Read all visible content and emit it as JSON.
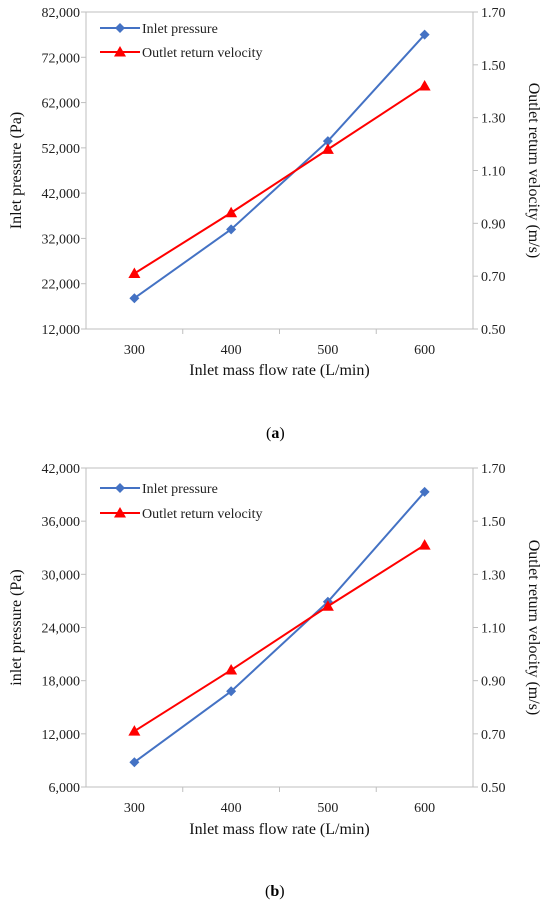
{
  "colors": {
    "pressure": "#4472C4",
    "velocity": "#FF0000"
  },
  "panels": [
    {
      "caption_open": "(",
      "caption_letter": "a",
      "caption_close": ")",
      "chart_data": {
        "type": "line",
        "xlabel": "Inlet mass flow rate (L/min)",
        "ylabel": "Inlet pressure (Pa)",
        "y2label": "Outlet return velocity (m/s)",
        "categories": [
          "300",
          "400",
          "500",
          "600"
        ],
        "y_ticks": [
          "12,000",
          "22,000",
          "32,000",
          "42,000",
          "52,000",
          "62,000",
          "72,000",
          "82,000"
        ],
        "ylim": [
          12000,
          82000
        ],
        "y2_ticks": [
          "0.50",
          "0.70",
          "0.90",
          "1.10",
          "1.30",
          "1.50",
          "1.70"
        ],
        "y2lim": [
          0.5,
          1.7
        ],
        "legend_position": "top-left",
        "series": [
          {
            "name": "Inlet pressure",
            "axis": "left",
            "marker": "diamond",
            "values": [
              18800,
              34000,
              53500,
              77000
            ]
          },
          {
            "name": "Outlet return velocity",
            "axis": "right",
            "marker": "triangle",
            "values": [
              0.71,
              0.94,
              1.18,
              1.42
            ]
          }
        ]
      }
    },
    {
      "caption_open": "(",
      "caption_letter": "b",
      "caption_close": ")",
      "chart_data": {
        "type": "line",
        "xlabel": "Inlet mass flow rate (L/min)",
        "ylabel": "inlet pressure (Pa)",
        "y2label": "Outlet return velocity (m/s)",
        "categories": [
          "300",
          "400",
          "500",
          "600"
        ],
        "y_ticks": [
          "6,000",
          "12,000",
          "18,000",
          "24,000",
          "30,000",
          "36,000",
          "42,000"
        ],
        "ylim": [
          6000,
          42000
        ],
        "y2_ticks": [
          "0.50",
          "0.70",
          "0.90",
          "1.10",
          "1.30",
          "1.50",
          "1.70"
        ],
        "y2lim": [
          0.5,
          1.7
        ],
        "legend_position": "top-left",
        "series": [
          {
            "name": "Inlet pressure",
            "axis": "left",
            "marker": "diamond",
            "values": [
              8800,
              16800,
              26900,
              39300
            ]
          },
          {
            "name": "Outlet return velocity",
            "axis": "right",
            "marker": "triangle",
            "values": [
              0.71,
              0.94,
              1.18,
              1.41
            ]
          }
        ]
      }
    }
  ]
}
